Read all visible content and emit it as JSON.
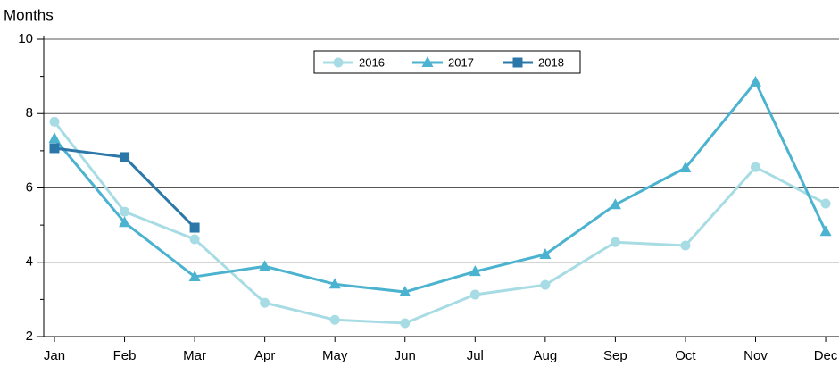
{
  "chart_data": {
    "type": "line",
    "y_label": "Months",
    "categories": [
      "Jan",
      "Feb",
      "Mar",
      "Apr",
      "May",
      "Jun",
      "Jul",
      "Aug",
      "Sep",
      "Oct",
      "Nov",
      "Dec"
    ],
    "series": [
      {
        "name": "2016",
        "color": "#a8dce4",
        "marker": "circle",
        "values": [
          7.78,
          5.36,
          4.62,
          2.91,
          2.45,
          2.36,
          3.13,
          3.39,
          4.54,
          4.45,
          6.56,
          5.58
        ]
      },
      {
        "name": "2017",
        "color": "#4bb3cf",
        "marker": "triangle",
        "values": [
          7.33,
          5.07,
          3.61,
          3.89,
          3.41,
          3.2,
          3.75,
          4.21,
          5.55,
          6.54,
          8.85,
          4.83
        ]
      },
      {
        "name": "2018",
        "color": "#2b78a8",
        "marker": "square",
        "values": [
          7.07,
          6.83,
          4.93,
          null,
          null,
          null,
          null,
          null,
          null,
          null,
          null,
          null
        ]
      }
    ],
    "ylim": [
      2,
      10
    ],
    "yticks": [
      2,
      4,
      6,
      8,
      10
    ],
    "y_minor_ticks": [
      3,
      5,
      7,
      9
    ],
    "grid": true,
    "legend": "top"
  }
}
